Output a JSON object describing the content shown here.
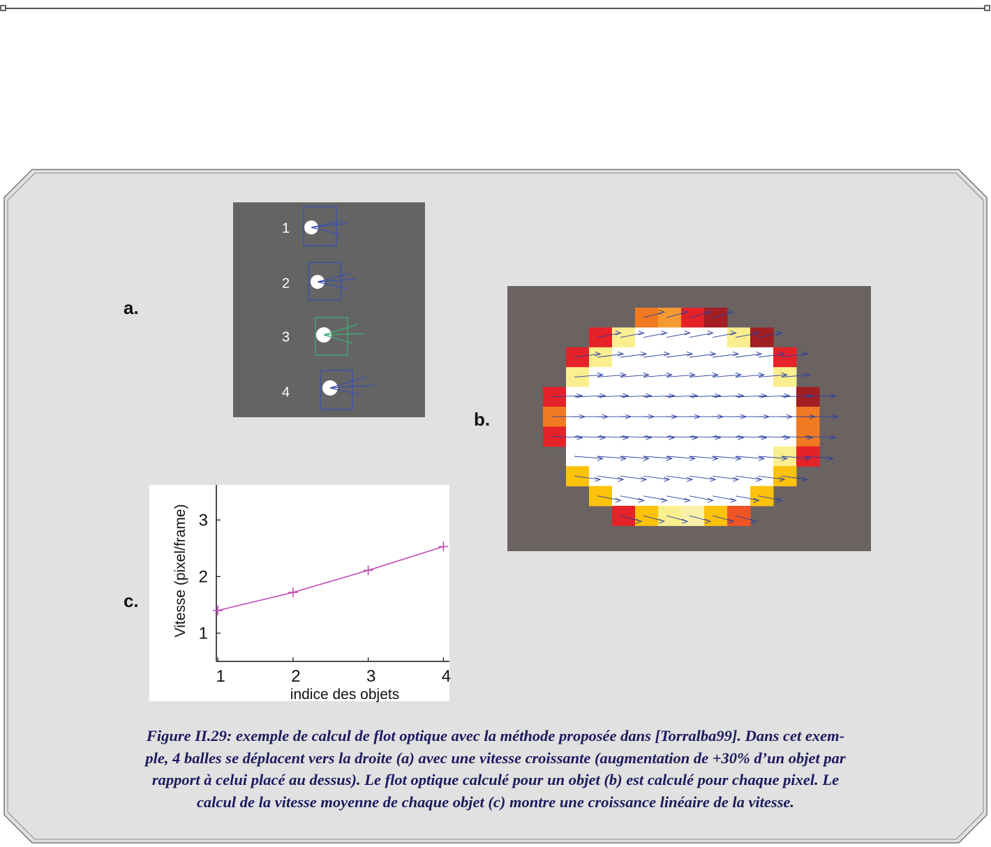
{
  "panels": {
    "a": {
      "label": "a.",
      "objects": [
        "1",
        "2",
        "3",
        "4"
      ]
    },
    "b": {
      "label": "b."
    },
    "c": {
      "label": "c."
    }
  },
  "chart_data": {
    "type": "line",
    "x": [
      1,
      2,
      3,
      4
    ],
    "values": [
      1.4,
      1.72,
      2.11,
      2.53
    ],
    "color": "#c04cb4",
    "xlim": [
      0.98,
      4.08
    ],
    "ylim": [
      0.5,
      3.62
    ],
    "xticks": [
      1,
      2,
      3,
      4
    ],
    "yticks": [
      1,
      2,
      3
    ],
    "x_label": "indice des objets",
    "y_label": "Vitesse (pixel/frame)"
  },
  "caption": {
    "lines": [
      "Figure II.29: exemple de calcul de flot optique avec la méthode proposée dans [Torralba99]. Dans cet exem-",
      "ple, 4 balles se déplacent vers la droite (a) avec une vitesse croissante (augmentation de +30% d’un objet par",
      "rapport à celui placé au dessus). Le flot optique calculé pour un objet (b) est calculé pour chaque pixel. Le",
      "calcul de la vitesse moyenne de chaque objet (c) montre une croissance linéaire de la vitesse."
    ]
  }
}
